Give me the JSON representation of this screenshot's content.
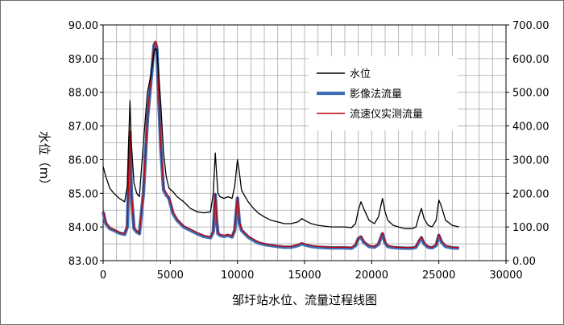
{
  "chart_data": {
    "type": "line",
    "title": "",
    "xlabel": "邹圩站水位、流量过程线图",
    "ylabel": "水位（m）",
    "y2label": "",
    "xlim": [
      0,
      30000
    ],
    "ylim": [
      83.0,
      90.0
    ],
    "y2lim": [
      0,
      700
    ],
    "x_ticks": [
      "0",
      "5000",
      "10000",
      "15000",
      "20000",
      "25000",
      "30000"
    ],
    "y_ticks": [
      "83.00",
      "84.00",
      "85.00",
      "86.00",
      "87.00",
      "88.00",
      "89.00",
      "90.00"
    ],
    "y2_ticks": [
      "0.00",
      "100.00",
      "200.00",
      "300.00",
      "400.00",
      "500.00",
      "600.00",
      "700.00"
    ],
    "grid": true,
    "legend_position": "top-right",
    "series": [
      {
        "name": "水位",
        "color": "#000000",
        "axis": "left",
        "x": [
          0,
          200,
          500,
          800,
          1200,
          1600,
          1800,
          1900,
          2000,
          2100,
          2300,
          2500,
          2700,
          3000,
          3300,
          3600,
          3800,
          3900,
          4000,
          4100,
          4300,
          4500,
          4700,
          4900,
          5200,
          5500,
          6000,
          6500,
          7000,
          7500,
          8000,
          8200,
          8350,
          8450,
          8550,
          8700,
          9000,
          9300,
          9600,
          9800,
          10000,
          10150,
          10300,
          10500,
          10800,
          11200,
          11600,
          12000,
          12500,
          13000,
          13500,
          14000,
          14500,
          14800,
          15000,
          15500,
          16000,
          17000,
          18000,
          18500,
          18800,
          19000,
          19200,
          19400,
          19800,
          20200,
          20500,
          20800,
          21000,
          21200,
          21600,
          22000,
          22500,
          23000,
          23300,
          23500,
          23700,
          23900,
          24200,
          24500,
          24800,
          25000,
          25200,
          25500,
          26000,
          26500
        ],
        "y": [
          85.8,
          85.5,
          85.15,
          85.0,
          84.85,
          84.75,
          85.2,
          86.5,
          87.75,
          86.5,
          85.3,
          85.0,
          84.9,
          86.5,
          88.0,
          88.6,
          89.2,
          89.3,
          89.25,
          88.8,
          87.6,
          86.2,
          85.5,
          85.15,
          85.05,
          84.9,
          84.75,
          84.55,
          84.45,
          84.42,
          84.45,
          85.0,
          86.2,
          85.6,
          85.0,
          84.9,
          84.85,
          84.9,
          84.85,
          85.2,
          86.0,
          85.6,
          85.1,
          84.95,
          84.75,
          84.55,
          84.4,
          84.3,
          84.2,
          84.15,
          84.1,
          84.1,
          84.15,
          84.25,
          84.2,
          84.1,
          84.05,
          84.0,
          84.0,
          83.98,
          84.1,
          84.5,
          84.75,
          84.55,
          84.2,
          84.1,
          84.3,
          84.85,
          84.45,
          84.2,
          84.05,
          84.0,
          83.95,
          83.95,
          84.0,
          84.3,
          84.55,
          84.25,
          84.05,
          84.0,
          84.2,
          84.8,
          84.6,
          84.2,
          84.05,
          84.0
        ]
      },
      {
        "name": "影像法流量",
        "color": "#3f6db3",
        "axis": "right",
        "x": [
          0,
          200,
          500,
          800,
          1200,
          1600,
          1800,
          1900,
          2000,
          2100,
          2300,
          2500,
          2700,
          3000,
          3300,
          3600,
          3800,
          3900,
          4000,
          4100,
          4300,
          4500,
          4700,
          4900,
          5200,
          5500,
          6000,
          6500,
          7000,
          7500,
          8000,
          8200,
          8350,
          8450,
          8550,
          8700,
          9000,
          9300,
          9600,
          9800,
          10000,
          10150,
          10300,
          10500,
          10800,
          11200,
          11600,
          12000,
          12500,
          13000,
          13500,
          14000,
          14500,
          14800,
          15000,
          15500,
          16000,
          17000,
          18000,
          18500,
          18800,
          19000,
          19200,
          19400,
          19800,
          20200,
          20500,
          20800,
          21000,
          21200,
          21600,
          22000,
          22500,
          23000,
          23300,
          23500,
          23700,
          23900,
          24200,
          24500,
          24800,
          25000,
          25200,
          25500,
          26000,
          26500
        ],
        "y": [
          145,
          110,
          95,
          90,
          82,
          78,
          100,
          250,
          370,
          200,
          95,
          85,
          80,
          200,
          420,
          550,
          640,
          645,
          630,
          520,
          330,
          210,
          195,
          185,
          140,
          120,
          100,
          90,
          80,
          72,
          68,
          85,
          195,
          120,
          80,
          75,
          72,
          75,
          70,
          90,
          185,
          110,
          90,
          82,
          70,
          60,
          52,
          48,
          45,
          42,
          40,
          40,
          45,
          50,
          47,
          42,
          40,
          38,
          38,
          37,
          45,
          65,
          70,
          55,
          42,
          40,
          48,
          80,
          52,
          42,
          39,
          38,
          37,
          37,
          40,
          55,
          68,
          50,
          40,
          38,
          45,
          75,
          55,
          42,
          38,
          37
        ]
      },
      {
        "name": "流速仪实测流量",
        "color": "#c00000",
        "axis": "right",
        "x": [
          0,
          200,
          500,
          800,
          1200,
          1600,
          1800,
          1900,
          2000,
          2100,
          2300,
          2500,
          2700,
          3000,
          3300,
          3600,
          3800,
          3900,
          4000,
          4100,
          4300,
          4500,
          4700,
          4900,
          5200,
          5500,
          6000,
          6500,
          7000,
          7500,
          8000,
          8200,
          8350,
          8450,
          8550,
          8700,
          9000,
          9300,
          9600,
          9800,
          10000,
          10150,
          10300,
          10500,
          10800,
          11200,
          11600,
          12000,
          12500,
          13000,
          13500,
          14000,
          14500,
          14800,
          15000,
          15500,
          16000,
          17000,
          18000,
          18500,
          18800,
          19000,
          19200,
          19400,
          19800,
          20200,
          20500,
          20800,
          21000,
          21200,
          21600,
          22000,
          22500,
          23000,
          23300,
          23500,
          23700,
          23900,
          24200,
          24500,
          24800,
          25000,
          25200,
          25500,
          26000,
          26500
        ],
        "y": [
          150,
          115,
          98,
          92,
          84,
          80,
          102,
          255,
          385,
          205,
          98,
          88,
          82,
          205,
          430,
          560,
          648,
          652,
          640,
          530,
          340,
          215,
          200,
          190,
          145,
          123,
          103,
          93,
          83,
          75,
          70,
          88,
          200,
          125,
          83,
          78,
          75,
          78,
          73,
          93,
          190,
          115,
          93,
          85,
          73,
          63,
          55,
          50,
          47,
          44,
          42,
          42,
          48,
          53,
          50,
          45,
          42,
          40,
          40,
          39,
          48,
          68,
          73,
          58,
          45,
          42,
          51,
          83,
          55,
          45,
          41,
          40,
          39,
          39,
          42,
          58,
          71,
          53,
          42,
          40,
          48,
          78,
          58,
          45,
          40,
          39
        ]
      }
    ]
  }
}
